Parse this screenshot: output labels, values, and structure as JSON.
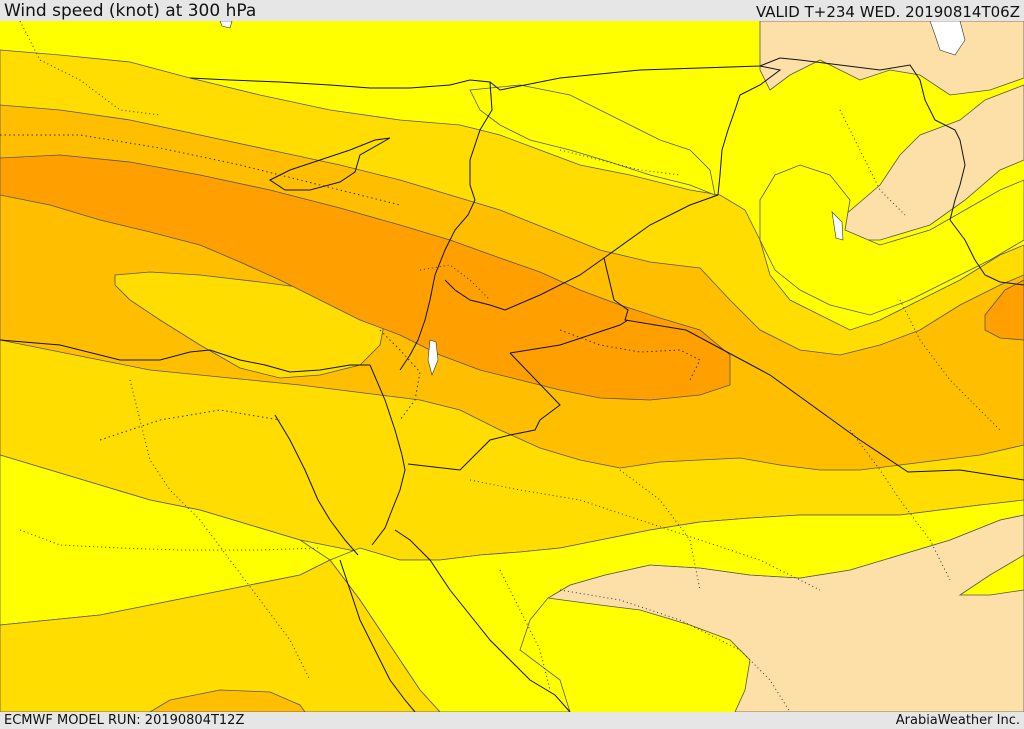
{
  "header": {
    "title": "Wind speed (knot) at 300 hPa",
    "valid_time": "VALID T+234 WED. 20190814T06Z"
  },
  "footer": {
    "model_run": "ECMWF MODEL RUN: 20190804T12Z",
    "credit": "ArabiaWeather Inc."
  },
  "map": {
    "field": "wind speed at 300 hPa",
    "palette": {
      "lightest": "#fde0a8",
      "yellow": "#ffff00",
      "gold": "#ffdd00",
      "amber": "#ffbf00",
      "orange": "#ff9f00",
      "land_water": "#ffffff",
      "contour": "#555555",
      "border": "#111111"
    }
  }
}
